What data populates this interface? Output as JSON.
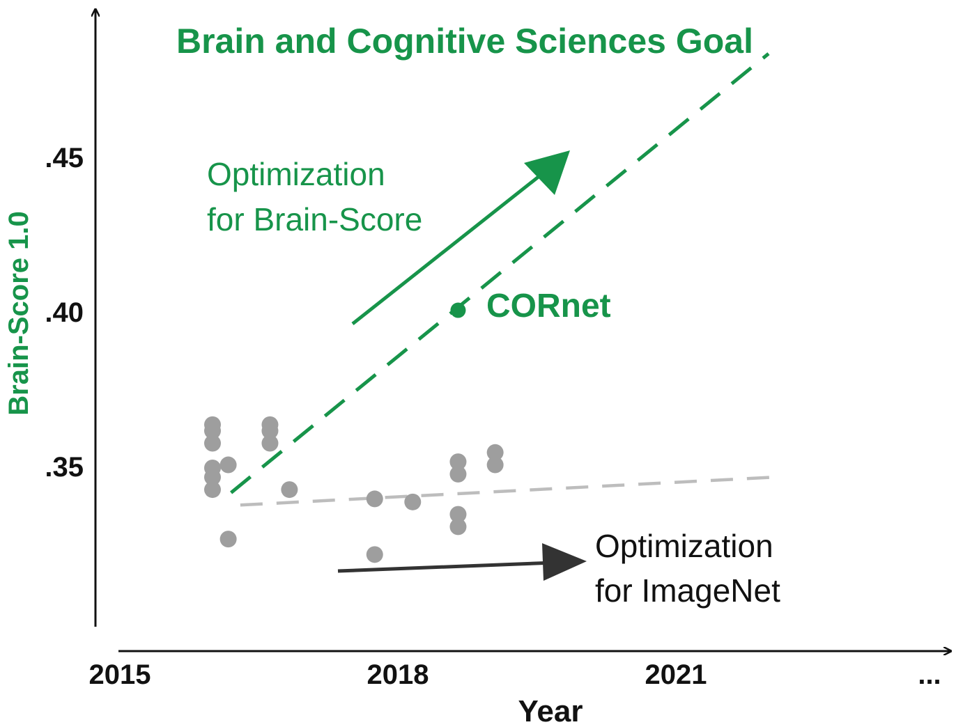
{
  "colors": {
    "accent": "#17944a",
    "gray_points": "#9e9e9e",
    "gray_trend": "#bdbdbd",
    "dark_arrow": "#333333",
    "axis": "#111111"
  },
  "chart_data": {
    "type": "scatter",
    "title": "Brain and Cognitive Sciences Goal",
    "xlabel": "Year",
    "ylabel": "Brain-Score 1.0",
    "x_ticks": [
      "2015",
      "2018",
      "2021",
      "..."
    ],
    "y_ticks": [
      ".35",
      ".40",
      ".45"
    ],
    "xlim": [
      2015,
      2023
    ],
    "ylim": [
      0.3,
      0.47
    ],
    "grid": false,
    "series": [
      {
        "points": [
          [
            2016.0,
            0.364
          ],
          [
            2016.0,
            0.362
          ],
          [
            2016.0,
            0.358
          ],
          [
            2016.0,
            0.35
          ],
          [
            2016.0,
            0.347
          ],
          [
            2016.0,
            0.343
          ],
          [
            2016.17,
            0.351
          ],
          [
            2016.17,
            0.327
          ],
          [
            2016.62,
            0.364
          ],
          [
            2016.62,
            0.362
          ],
          [
            2016.62,
            0.358
          ],
          [
            2016.83,
            0.343
          ],
          [
            2017.75,
            0.34
          ],
          [
            2017.75,
            0.322
          ],
          [
            2018.16,
            0.339
          ],
          [
            2018.65,
            0.352
          ],
          [
            2018.65,
            0.348
          ],
          [
            2018.65,
            0.335
          ],
          [
            2018.65,
            0.331
          ],
          [
            2019.05,
            0.355
          ],
          [
            2019.05,
            0.351
          ]
        ]
      },
      {
        "name": "CORnet",
        "points": [
          [
            2018.65,
            0.401
          ]
        ]
      }
    ],
    "trend_lines": [
      {
        "style": "dashed",
        "color": "gray",
        "from": [
          2016.3,
          0.338
        ],
        "to": [
          2022.05,
          0.347
        ]
      },
      {
        "style": "dashed",
        "color": "green",
        "from": [
          2016.2,
          0.342
        ],
        "to": [
          2022.0,
          0.484
        ]
      }
    ],
    "annotations": [
      {
        "line1": "Optimization",
        "line2": "for Brain-Score",
        "color": "green"
      },
      {
        "line1": "Optimization",
        "line2": "for ImageNet",
        "color": "dark"
      }
    ]
  }
}
